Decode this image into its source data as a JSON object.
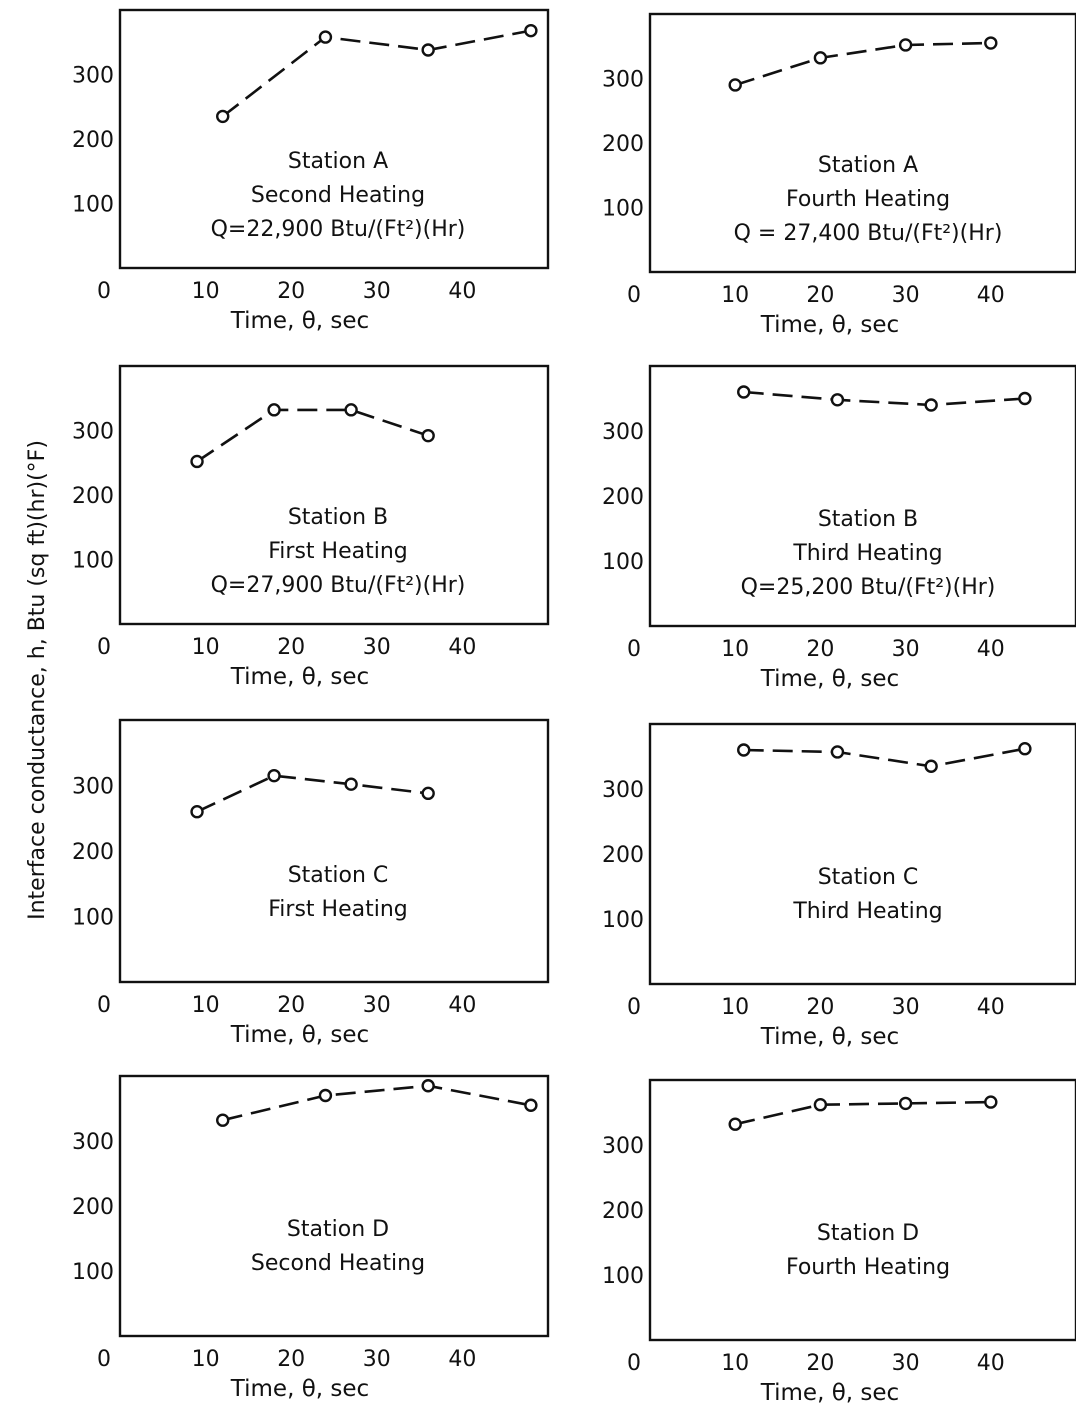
{
  "figure": {
    "ylabel": "Interface conductance, h, Btu (sq ft)(hr)(°F)"
  },
  "chart_data": [
    {
      "type": "line",
      "xlabel": "Time, θ, sec",
      "xticks": [
        "0",
        "10",
        "20",
        "30",
        "40"
      ],
      "yticks": [
        "100",
        "200",
        "300"
      ],
      "xlim": [
        0,
        50
      ],
      "ylim": [
        0,
        400
      ],
      "x": [
        12,
        24,
        36,
        48
      ],
      "values": [
        235,
        358,
        338,
        368
      ],
      "annotations": [
        "Station A",
        "Second Heating",
        "Q=22,900 Btu/(Ft²)(Hr)"
      ]
    },
    {
      "type": "line",
      "xlabel": "Time, θ, sec",
      "xticks": [
        "0",
        "10",
        "20",
        "30",
        "40"
      ],
      "yticks": [
        "100",
        "200",
        "300"
      ],
      "xlim": [
        0,
        50
      ],
      "ylim": [
        0,
        400
      ],
      "x": [
        10,
        20,
        30,
        40
      ],
      "values": [
        290,
        332,
        352,
        355
      ],
      "annotations": [
        "Station A",
        "Fourth Heating",
        "Q = 27,400 Btu/(Ft²)(Hr)"
      ]
    },
    {
      "type": "line",
      "xlabel": "Time, θ, sec",
      "xticks": [
        "0",
        "10",
        "20",
        "30",
        "40"
      ],
      "yticks": [
        "100",
        "200",
        "300"
      ],
      "xlim": [
        0,
        50
      ],
      "ylim": [
        0,
        400
      ],
      "x": [
        9,
        18,
        27,
        36
      ],
      "values": [
        252,
        332,
        332,
        292
      ],
      "annotations": [
        "Station B",
        "First Heating",
        "Q=27,900 Btu/(Ft²)(Hr)"
      ]
    },
    {
      "type": "line",
      "xlabel": "Time, θ, sec",
      "xticks": [
        "0",
        "10",
        "20",
        "30",
        "40"
      ],
      "yticks": [
        "100",
        "200",
        "300"
      ],
      "xlim": [
        0,
        50
      ],
      "ylim": [
        0,
        400
      ],
      "x": [
        11,
        22,
        33,
        44
      ],
      "values": [
        360,
        348,
        340,
        350
      ],
      "annotations": [
        "Station B",
        "Third Heating",
        "Q=25,200 Btu/(Ft²)(Hr)"
      ]
    },
    {
      "type": "line",
      "xlabel": "Time, θ, sec",
      "xticks": [
        "0",
        "10",
        "20",
        "30",
        "40"
      ],
      "yticks": [
        "100",
        "200",
        "300"
      ],
      "xlim": [
        0,
        50
      ],
      "ylim": [
        0,
        400
      ],
      "x": [
        9,
        18,
        27,
        36
      ],
      "values": [
        260,
        315,
        302,
        288
      ],
      "annotations": [
        "Station C",
        "First Heating"
      ]
    },
    {
      "type": "line",
      "xlabel": "Time, θ, sec",
      "xticks": [
        "0",
        "10",
        "20",
        "30",
        "40"
      ],
      "yticks": [
        "100",
        "200",
        "300"
      ],
      "xlim": [
        0,
        50
      ],
      "ylim": [
        0,
        400
      ],
      "x": [
        11,
        22,
        33,
        44
      ],
      "values": [
        360,
        357,
        335,
        362
      ],
      "annotations": [
        "Station C",
        "Third Heating"
      ]
    },
    {
      "type": "line",
      "xlabel": "Time, θ, sec",
      "xticks": [
        "0",
        "10",
        "20",
        "30",
        "40"
      ],
      "yticks": [
        "100",
        "200",
        "300"
      ],
      "xlim": [
        0,
        50
      ],
      "ylim": [
        0,
        400
      ],
      "x": [
        12,
        24,
        36,
        48
      ],
      "values": [
        332,
        370,
        385,
        355
      ],
      "annotations": [
        "Station D",
        "Second Heating"
      ]
    },
    {
      "type": "line",
      "xlabel": "Time, θ, sec",
      "xticks": [
        "0",
        "10",
        "20",
        "30",
        "40"
      ],
      "yticks": [
        "100",
        "200",
        "300"
      ],
      "xlim": [
        0,
        50
      ],
      "ylim": [
        0,
        400
      ],
      "x": [
        10,
        20,
        30,
        40
      ],
      "values": [
        332,
        362,
        364,
        366
      ],
      "annotations": [
        "Station D",
        "Fourth Heating"
      ]
    }
  ]
}
